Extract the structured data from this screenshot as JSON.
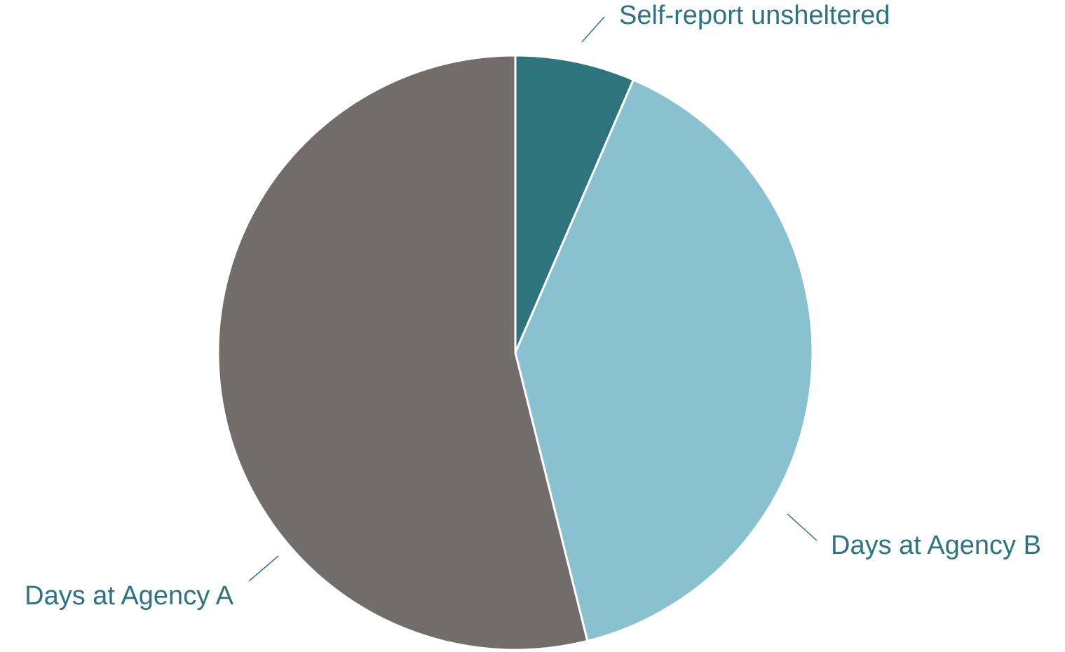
{
  "chart_data": {
    "type": "pie",
    "categories": [
      "Self-report unsheltered",
      "Days at Agency B",
      "Days at Agency A"
    ],
    "values": [
      6.5,
      39.6,
      53.9
    ],
    "colors": [
      "#2e737e",
      "#8ac1d0",
      "#726d6b"
    ]
  }
}
